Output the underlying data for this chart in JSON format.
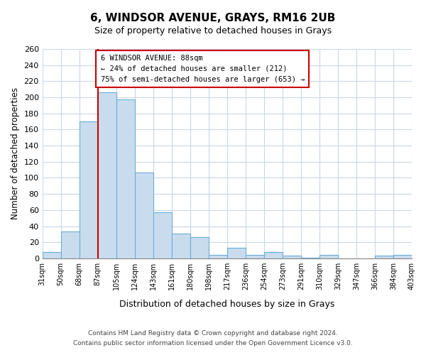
{
  "title": "6, WINDSOR AVENUE, GRAYS, RM16 2UB",
  "subtitle": "Size of property relative to detached houses in Grays",
  "xlabel": "Distribution of detached houses by size in Grays",
  "ylabel": "Number of detached properties",
  "bin_labels": [
    "31sqm",
    "50sqm",
    "68sqm",
    "87sqm",
    "105sqm",
    "124sqm",
    "143sqm",
    "161sqm",
    "180sqm",
    "198sqm",
    "217sqm",
    "236sqm",
    "254sqm",
    "273sqm",
    "291sqm",
    "310sqm",
    "329sqm",
    "347sqm",
    "366sqm",
    "384sqm",
    "403sqm"
  ],
  "values": [
    8,
    33,
    170,
    206,
    197,
    107,
    57,
    31,
    26,
    4,
    13,
    4,
    8,
    3,
    1,
    4,
    0,
    0,
    3,
    4
  ],
  "bar_color": "#c9dcee",
  "bar_edge_color": "#6aaed6",
  "property_line_idx": 3,
  "property_line_color": "#cc0000",
  "ylim": [
    0,
    260
  ],
  "yticks": [
    0,
    20,
    40,
    60,
    80,
    100,
    120,
    140,
    160,
    180,
    200,
    220,
    240,
    260
  ],
  "annotation_title": "6 WINDSOR AVENUE: 88sqm",
  "annotation_line1": "← 24% of detached houses are smaller (212)",
  "annotation_line2": "75% of semi-detached houses are larger (653) →",
  "annotation_box_color": "#ffffff",
  "annotation_border_color": "#cc0000",
  "footer_line1": "Contains HM Land Registry data © Crown copyright and database right 2024.",
  "footer_line2": "Contains public sector information licensed under the Open Government Licence v3.0.",
  "background_color": "#ffffff",
  "grid_color": "#c8d8e8"
}
